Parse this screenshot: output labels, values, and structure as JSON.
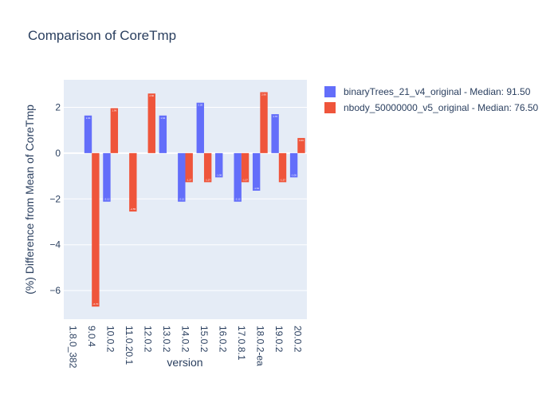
{
  "chart_data": {
    "type": "bar",
    "title": "Comparison of CoreTmp",
    "xlabel": "version",
    "ylabel": "(%) Difference from Mean of CoreTmp",
    "categories": [
      "1.8.0_382",
      "9.0.4",
      "10.0.2",
      "11.0.20.1",
      "12.0.2",
      "13.0.2",
      "14.0.2",
      "15.0.2",
      "16.0.2",
      "17.0.8.1",
      "18.0.2-ea",
      "19.0.2",
      "20.0.2"
    ],
    "ylim": [
      -7.25,
      3.2
    ],
    "yticks": [
      -6,
      -4,
      -2,
      0,
      2
    ],
    "ytick_labels": [
      "−6",
      "−4",
      "−2",
      "0",
      "2"
    ],
    "grid": true,
    "legend_position": "top-right",
    "series": [
      {
        "name": "binaryTrees_21_v4_original - Median: 91.50",
        "color": "#636efa",
        "values": [
          null,
          1.64,
          -2.12,
          null,
          null,
          1.64,
          -2.12,
          2.2,
          -1.06,
          -2.12,
          -1.64,
          1.7,
          -1.06
        ]
      },
      {
        "name": "nbody_50000000_v5_original - Median: 76.50",
        "color": "#ef553b",
        "values": [
          null,
          -6.7,
          1.96,
          -2.55,
          2.6,
          null,
          -1.27,
          -1.27,
          null,
          -1.27,
          2.66,
          -1.27,
          0.66
        ]
      }
    ]
  }
}
